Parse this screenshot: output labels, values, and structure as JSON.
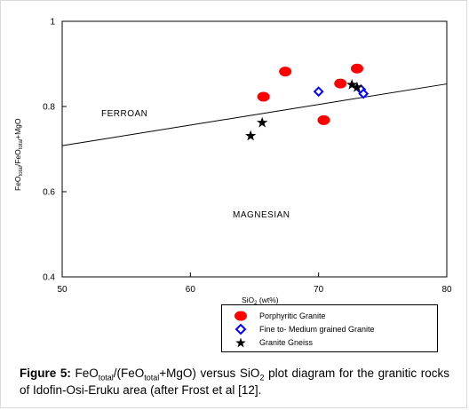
{
  "chart_data": {
    "type": "scatter",
    "xlabel_main": "SiO",
    "xlabel_sub": "2",
    "xlabel_unit": " (wt%)",
    "ylabel": "FeO",
    "ylabel_parts": [
      "FeO",
      "total",
      "/FeO",
      "total",
      "+MgO"
    ],
    "xlim": [
      50,
      80
    ],
    "ylim": [
      0.4,
      1.0
    ],
    "x_ticks": [
      "50",
      "60",
      "70",
      "80"
    ],
    "y_ticks": [
      "0.4",
      "0.6",
      "0.8",
      "1"
    ],
    "boundary_line": {
      "x": [
        50,
        80
      ],
      "y": [
        0.708,
        0.853
      ]
    },
    "region_labels": [
      "FERROAN",
      "MAGNESIAN"
    ],
    "series": [
      {
        "name": "Porphyritic Granite",
        "marker": "circle",
        "color": "#ff0000",
        "x": [
          65.7,
          67.4,
          70.4,
          71.7,
          73.0
        ],
        "y": [
          0.823,
          0.882,
          0.768,
          0.854,
          0.889
        ]
      },
      {
        "name": "Fine to- Medium grained Granite",
        "marker": "diamond",
        "color": "#0000ff",
        "x": [
          70.0,
          73.3,
          73.5
        ],
        "y": [
          0.835,
          0.84,
          0.83
        ]
      },
      {
        "name": "Granite Gneiss",
        "marker": "star",
        "color": "#000000",
        "x": [
          64.7,
          65.6,
          72.6,
          73.0
        ],
        "y": [
          0.731,
          0.762,
          0.851,
          0.845
        ]
      }
    ]
  },
  "caption": {
    "label": "Figure 5:",
    "p1": " FeO",
    "s1": "total",
    "p2": "/(FeO",
    "s2": "total",
    "p3": "+MgO) versus SiO",
    "s3": "2",
    "p4": " plot diagram for the granitic rocks of Idofin-Osi-Eruku area (after Frost et al [12]."
  }
}
